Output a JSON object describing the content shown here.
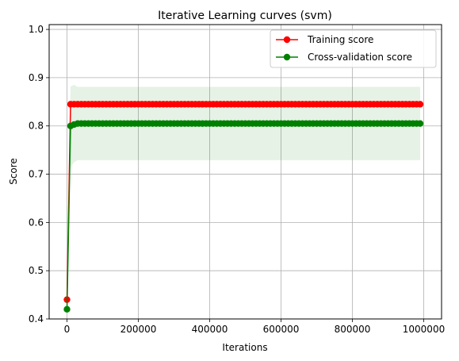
{
  "chart_data": {
    "type": "line",
    "title": "Iterative Learning curves (svm)",
    "xlabel": "Iterations",
    "ylabel": "Score",
    "xlim": [
      -50000,
      1050000
    ],
    "ylim": [
      0.4,
      1.01
    ],
    "xticks": [
      0,
      200000,
      400000,
      600000,
      800000,
      1000000
    ],
    "xtick_labels": [
      "0",
      "200000",
      "400000",
      "600000",
      "800000",
      "1000000"
    ],
    "yticks": [
      0.4,
      0.5,
      0.6,
      0.7,
      0.8,
      0.9,
      1.0
    ],
    "ytick_labels": [
      "0.4",
      "0.5",
      "0.6",
      "0.7",
      "0.8",
      "0.9",
      "1.0"
    ],
    "grid": true,
    "legend_position": "top-right",
    "marker_spacing": 10000,
    "x_end": 990000,
    "series": [
      {
        "name": "Training score",
        "color": "#ff0000",
        "first_point": [
          0,
          0.44
        ],
        "plateau": 0.845,
        "plateau_start": 10000
      },
      {
        "name": "Cross-validation score",
        "color": "#008000",
        "first_point": [
          0,
          0.42
        ],
        "early_points": [
          [
            10000,
            0.8
          ],
          [
            20000,
            0.803
          ]
        ],
        "plateau": 0.805,
        "plateau_start": 30000,
        "band_color": "#008000",
        "band": {
          "upper": [
            [
              0,
              0.42
            ],
            [
              10000,
              0.882
            ],
            [
              20000,
              0.885
            ],
            [
              30000,
              0.881
            ],
            [
              240000,
              0.881
            ],
            [
              990000,
              0.881
            ]
          ],
          "lower": [
            [
              0,
              0.42
            ],
            [
              10000,
              0.714
            ],
            [
              20000,
              0.725
            ],
            [
              30000,
              0.729
            ],
            [
              240000,
              0.729
            ],
            [
              990000,
              0.729
            ]
          ]
        }
      }
    ]
  }
}
